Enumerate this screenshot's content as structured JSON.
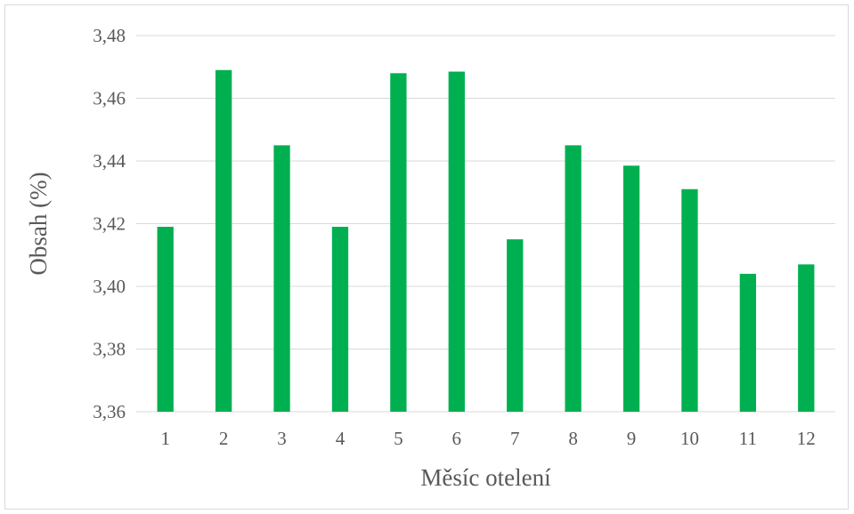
{
  "chart_data": {
    "type": "bar",
    "title": "",
    "xlabel": "Měsíc otelení",
    "ylabel": "Obsah (%)",
    "categories": [
      "1",
      "2",
      "3",
      "4",
      "5",
      "6",
      "7",
      "8",
      "9",
      "10",
      "11",
      "12"
    ],
    "series": [
      {
        "values": [
          3.419,
          3.469,
          3.445,
          3.419,
          3.468,
          3.4685,
          3.415,
          3.445,
          3.4385,
          3.431,
          3.404,
          3.407
        ]
      }
    ],
    "ylim": [
      3.36,
      3.48
    ],
    "yticks": [
      "3,36",
      "3,38",
      "3,40",
      "3,42",
      "3,44",
      "3,46",
      "3,48"
    ],
    "ytick_values": [
      3.36,
      3.38,
      3.4,
      3.42,
      3.44,
      3.46,
      3.48
    ],
    "grid": true,
    "legend": "none",
    "colors": {
      "bar": "#00b050",
      "grid": "#d9d9d9",
      "text": "#595959"
    }
  }
}
